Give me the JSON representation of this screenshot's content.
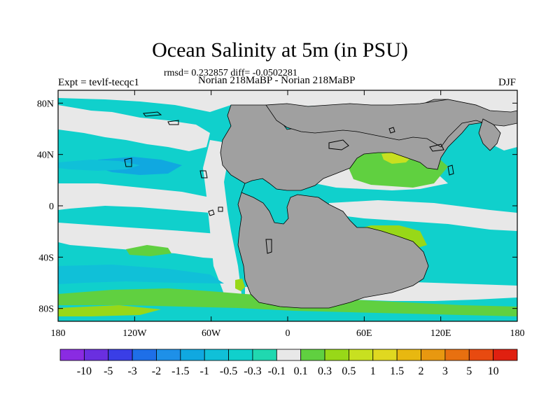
{
  "chart_data": {
    "type": "heatmap",
    "title": "Ocean Salinity at 5m (in PSU)",
    "stats_line": "rmsd= 0.232857 diff= -0.0502281",
    "left_label": "Expt = tevlf-tecqc1",
    "center_label": "Norian 218MaBP - Norian 218MaBP",
    "right_label": "DJF",
    "x_ticks": [
      {
        "value": -180,
        "label": "180"
      },
      {
        "value": -120,
        "label": "120W"
      },
      {
        "value": -60,
        "label": "60W"
      },
      {
        "value": 0,
        "label": "0"
      },
      {
        "value": 60,
        "label": "60E"
      },
      {
        "value": 120,
        "label": "120E"
      },
      {
        "value": 180,
        "label": "180"
      }
    ],
    "y_ticks": [
      {
        "value": 80,
        "label": "80N"
      },
      {
        "value": 40,
        "label": "40N"
      },
      {
        "value": 0,
        "label": "0"
      },
      {
        "value": -40,
        "label": "40S"
      },
      {
        "value": -80,
        "label": "80S"
      }
    ],
    "xlim": [
      -180,
      180
    ],
    "ylim": [
      -90,
      90
    ],
    "colorbar": {
      "labels": [
        "-10",
        "-5",
        "-3",
        "-2",
        "-1.5",
        "-1",
        "-0.5",
        "-0.3",
        "-0.1",
        "0.1",
        "0.3",
        "0.5",
        "1",
        "1.5",
        "2",
        "3",
        "5",
        "10"
      ],
      "colors": [
        "#8a2be2",
        "#6a2fe0",
        "#3a3ee6",
        "#1e6fe8",
        "#1e90e8",
        "#10a8e0",
        "#10c0d8",
        "#10d0cc",
        "#20d8b0",
        "#e8e8e8",
        "#60d040",
        "#98d818",
        "#c8e020",
        "#e0d820",
        "#e8b810",
        "#e89810",
        "#e87010",
        "#e84a10",
        "#e02010"
      ]
    },
    "fill_colors": {
      "land": "#a0a0a0",
      "neutral": "#e8e8e8",
      "fresh_light": "#10d0cc",
      "fresh_mid": "#10c0d8",
      "fresh_deep": "#10a8e0",
      "salty_light": "#60d040",
      "salty_mid": "#98d818",
      "salty_high": "#c8e020"
    }
  }
}
